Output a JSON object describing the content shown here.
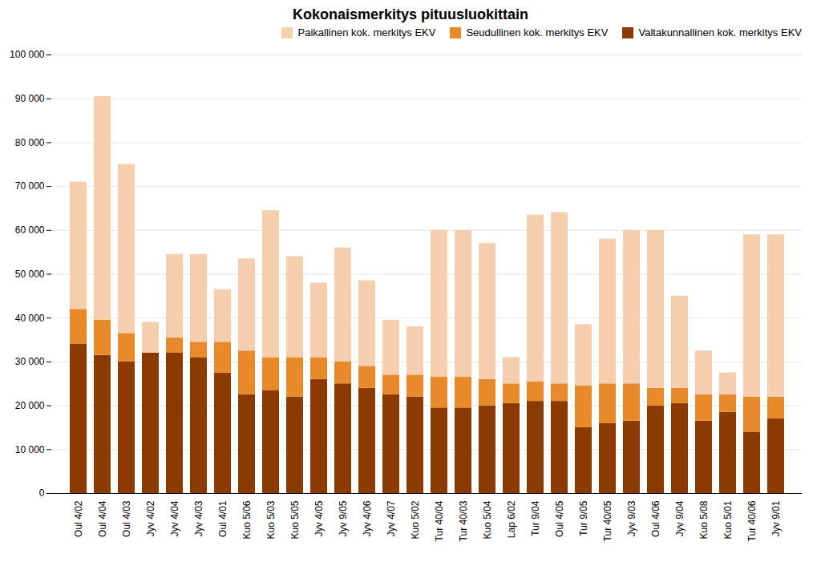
{
  "chart_data": {
    "type": "bar",
    "stacked": true,
    "title": "Kokonaismerkitys pituusluokittain",
    "categories": [
      "Oul 4/02",
      "Oul 4/04",
      "Oul 4/03",
      "Jyv 4/02",
      "Jyv 4/04",
      "Jyv 4/03",
      "Oul 4/01",
      "Kuo 5/06",
      "Kuo 5/03",
      "Kuo 5/05",
      "Jyv 4/05",
      "Jyv 9/05",
      "Jyv 4/06",
      "Jyv 4/07",
      "Kuo 5/02",
      "Tur 40/04",
      "Tur 40/03",
      "Kuo 5/04",
      "Lap 6/02",
      "Tur 9/04",
      "Oul 4/05",
      "Tur 9/05",
      "Tur 40/05",
      "Jyv 9/03",
      "Oul 4/06",
      "Jyv 9/04",
      "Kuo 5/08",
      "Kuo 5/01",
      "Tur 40/06",
      "Jyv 9/01"
    ],
    "series": [
      {
        "name": "Valtakunnallinen kok. merkitys EKV",
        "color": "#8B3A00",
        "values": [
          34000,
          31500,
          30000,
          32000,
          32000,
          31000,
          27500,
          22500,
          23500,
          22000,
          26000,
          25000,
          24000,
          22500,
          22000,
          19500,
          19500,
          20000,
          20500,
          21000,
          21000,
          15000,
          16000,
          16500,
          20000,
          20500,
          16500,
          18500,
          14000,
          17000
        ]
      },
      {
        "name": "Seudullinen kok. merkitys EKV",
        "color": "#E8892A",
        "values": [
          8000,
          8000,
          6500,
          0,
          3500,
          3500,
          7000,
          10000,
          7500,
          9000,
          5000,
          5000,
          5000,
          4500,
          5000,
          7000,
          7000,
          6000,
          4500,
          4500,
          4000,
          9500,
          9000,
          8500,
          4000,
          3500,
          6000,
          4000,
          8000,
          5000
        ]
      },
      {
        "name": "Paikallinen kok. merkitys EKV",
        "color": "#F5CEAD",
        "values": [
          29000,
          51000,
          38500,
          7000,
          19000,
          20000,
          12000,
          21000,
          33500,
          23000,
          17000,
          26000,
          19500,
          12500,
          11000,
          33500,
          33500,
          31000,
          6000,
          38000,
          39000,
          14000,
          33000,
          35000,
          36000,
          21000,
          10000,
          5000,
          37000,
          37000
        ]
      }
    ],
    "ylim": [
      0,
      100000
    ],
    "yticks": [
      0,
      {
        "value": 10000,
        "label": "10 000"
      },
      {
        "value": 20000,
        "label": "20 000"
      },
      {
        "value": 30000,
        "label": "30 000"
      },
      {
        "value": 40000,
        "label": "40 000"
      },
      {
        "value": 50000,
        "label": "50 000"
      },
      {
        "value": 60000,
        "label": "60 000"
      },
      {
        "value": 70000,
        "label": "70 000"
      },
      {
        "value": 80000,
        "label": "80 000"
      },
      {
        "value": 90000,
        "label": "90 000"
      },
      {
        "value": 100000,
        "label": "100 000"
      }
    ],
    "grid": true,
    "legend": "upper right"
  }
}
